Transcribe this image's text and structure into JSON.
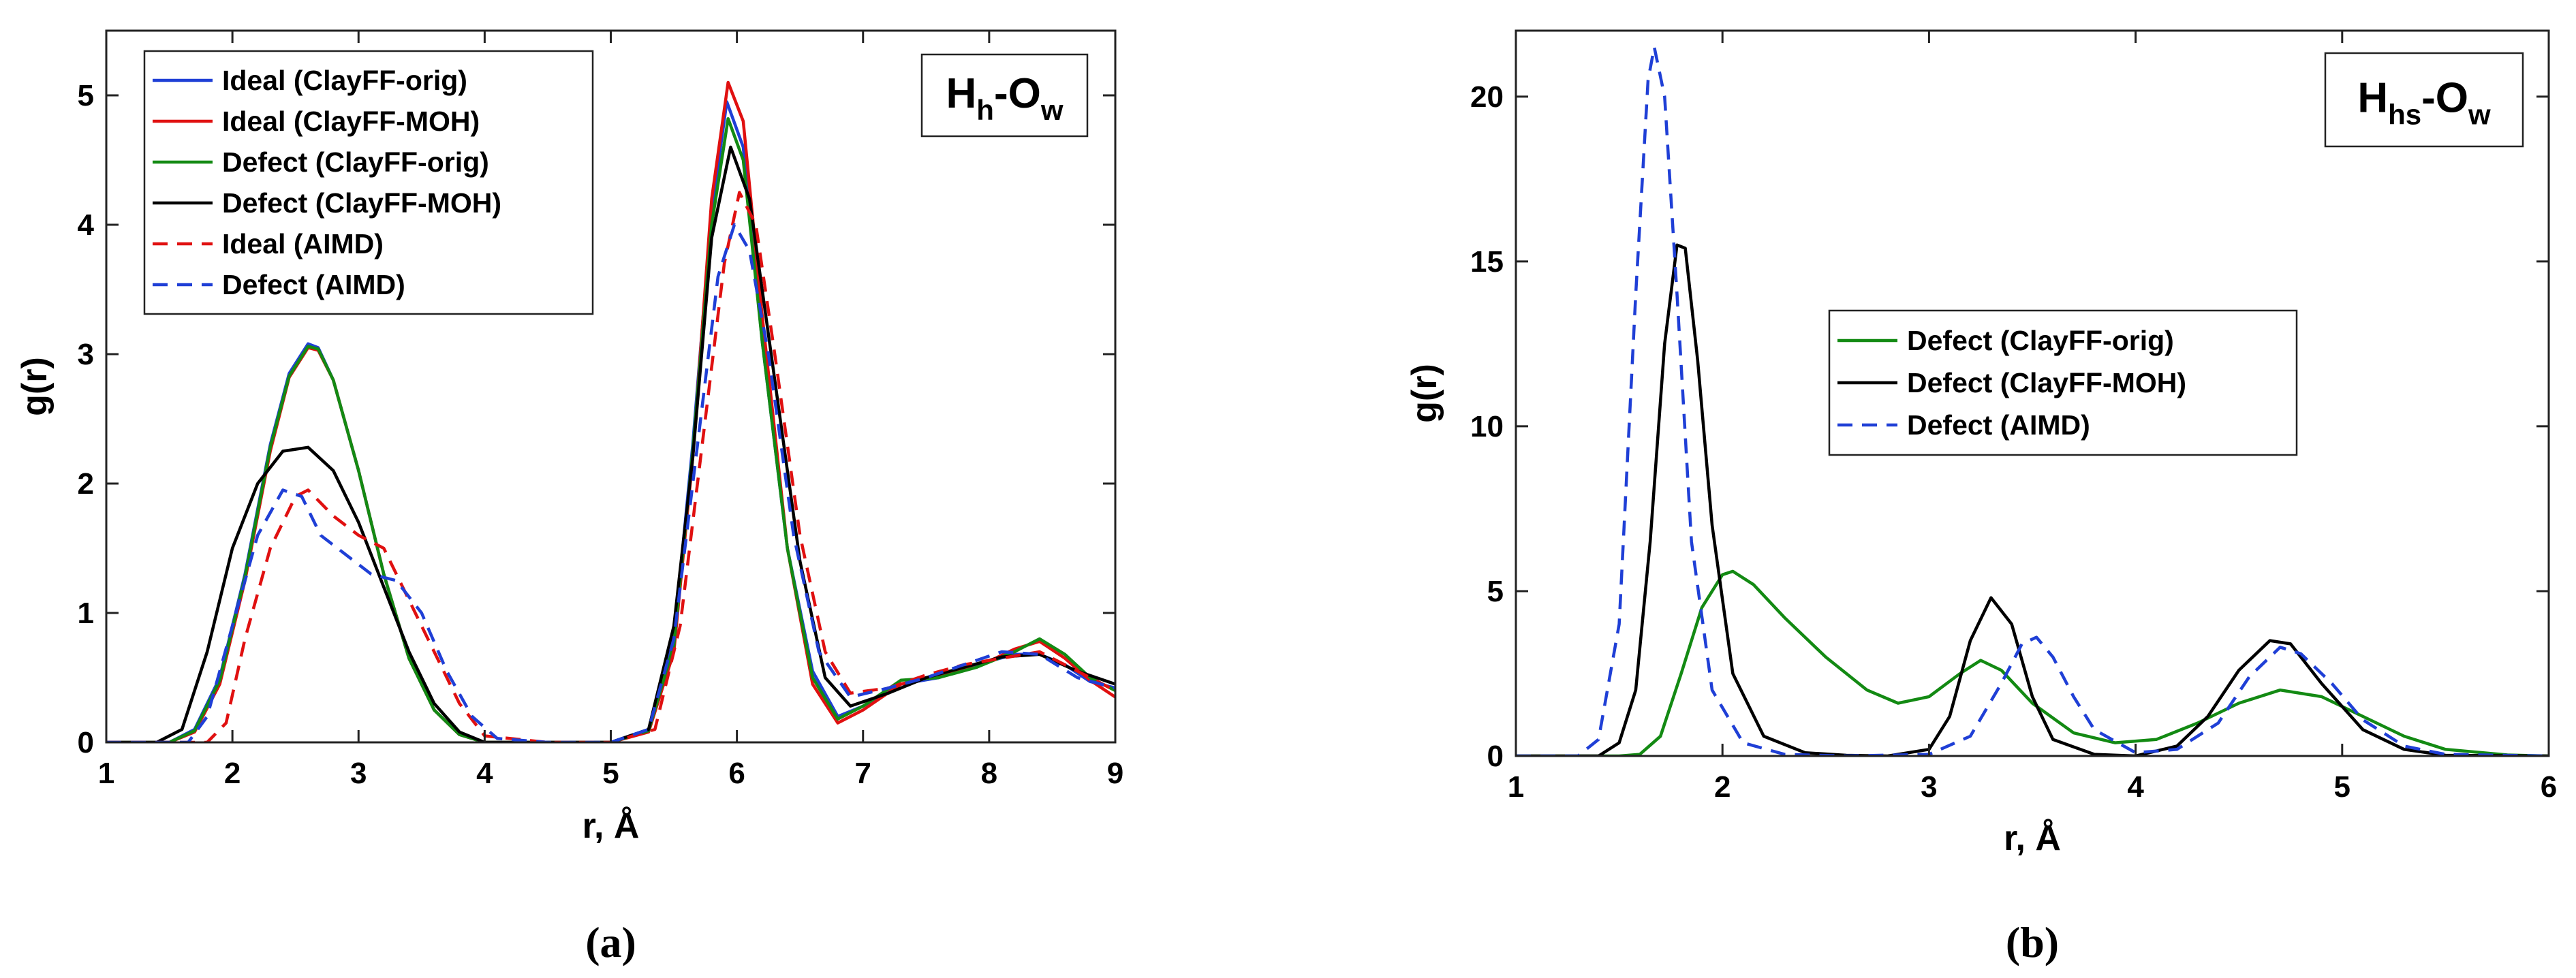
{
  "chart_data": [
    {
      "type": "line",
      "panel_label": "(a)",
      "annotation": {
        "main": "H",
        "sub1": "h",
        "dash": "-O",
        "sub2": "w"
      },
      "xlabel": "r, Å",
      "ylabel": "g(r)",
      "xlim": [
        1,
        9
      ],
      "ylim": [
        0,
        5.5
      ],
      "xticks": [
        1,
        2,
        3,
        4,
        5,
        6,
        7,
        8,
        9
      ],
      "yticks": [
        0,
        1,
        2,
        3,
        4,
        5
      ],
      "legend_position": "top-left",
      "series": [
        {
          "name": "Ideal (ClayFF-orig)",
          "color": "#1f3fd6",
          "dash": "solid",
          "x": [
            1.0,
            1.5,
            1.7,
            1.9,
            2.1,
            2.3,
            2.45,
            2.6,
            2.68,
            2.8,
            3.0,
            3.2,
            3.4,
            3.6,
            3.8,
            4.0,
            4.5,
            5.0,
            5.3,
            5.5,
            5.65,
            5.8,
            5.92,
            6.05,
            6.2,
            6.4,
            6.6,
            6.8,
            7.0,
            7.3,
            7.6,
            7.9,
            8.2,
            8.4,
            8.6,
            8.8,
            9.0
          ],
          "y": [
            0,
            0,
            0.1,
            0.5,
            1.3,
            2.3,
            2.85,
            3.08,
            3.05,
            2.8,
            2.1,
            1.3,
            0.65,
            0.25,
            0.06,
            0,
            0,
            0,
            0.1,
            0.8,
            2.3,
            4.1,
            4.95,
            4.6,
            3.1,
            1.5,
            0.55,
            0.2,
            0.28,
            0.45,
            0.5,
            0.6,
            0.68,
            0.68,
            0.6,
            0.47,
            0.42
          ]
        },
        {
          "name": "Ideal (ClayFF-MOH)",
          "color": "#e01010",
          "dash": "solid",
          "x": [
            1.0,
            1.5,
            1.7,
            1.9,
            2.1,
            2.3,
            2.45,
            2.6,
            2.68,
            2.8,
            3.0,
            3.2,
            3.4,
            3.6,
            3.8,
            4.0,
            4.5,
            5.0,
            5.3,
            5.5,
            5.65,
            5.8,
            5.93,
            6.05,
            6.2,
            6.4,
            6.6,
            6.8,
            7.0,
            7.3,
            7.6,
            7.9,
            8.2,
            8.4,
            8.6,
            8.8,
            9.0
          ],
          "y": [
            0,
            0,
            0.08,
            0.45,
            1.25,
            2.25,
            2.82,
            3.05,
            3.03,
            2.8,
            2.1,
            1.3,
            0.65,
            0.25,
            0.06,
            0,
            0,
            0,
            0.08,
            0.7,
            2.2,
            4.2,
            5.1,
            4.8,
            3.3,
            1.5,
            0.45,
            0.15,
            0.25,
            0.45,
            0.52,
            0.58,
            0.72,
            0.78,
            0.65,
            0.48,
            0.35
          ]
        },
        {
          "name": "Defect (ClayFF-orig)",
          "color": "#138a13",
          "dash": "solid",
          "x": [
            1.0,
            1.5,
            1.7,
            1.9,
            2.1,
            2.3,
            2.45,
            2.6,
            2.68,
            2.8,
            3.0,
            3.2,
            3.4,
            3.6,
            3.8,
            4.0,
            4.5,
            5.0,
            5.3,
            5.5,
            5.65,
            5.8,
            5.93,
            6.05,
            6.2,
            6.4,
            6.6,
            6.8,
            7.0,
            7.3,
            7.6,
            7.9,
            8.2,
            8.4,
            8.6,
            8.8,
            9.0
          ],
          "y": [
            0,
            0,
            0.09,
            0.48,
            1.28,
            2.28,
            2.83,
            3.06,
            3.04,
            2.8,
            2.1,
            1.3,
            0.65,
            0.25,
            0.06,
            0,
            0,
            0,
            0.09,
            0.75,
            2.25,
            4.0,
            4.82,
            4.5,
            3.1,
            1.5,
            0.5,
            0.18,
            0.28,
            0.48,
            0.5,
            0.58,
            0.7,
            0.8,
            0.68,
            0.5,
            0.4
          ]
        },
        {
          "name": "Defect (ClayFF-MOH)",
          "color": "#000000",
          "dash": "solid",
          "x": [
            1.0,
            1.4,
            1.6,
            1.8,
            2.0,
            2.2,
            2.4,
            2.6,
            2.8,
            3.0,
            3.2,
            3.4,
            3.6,
            3.8,
            4.0,
            4.5,
            5.0,
            5.3,
            5.5,
            5.65,
            5.8,
            5.95,
            6.1,
            6.3,
            6.5,
            6.7,
            6.9,
            7.2,
            7.5,
            7.8,
            8.1,
            8.4,
            8.7,
            9.0
          ],
          "y": [
            0,
            0,
            0.1,
            0.7,
            1.5,
            2.0,
            2.25,
            2.28,
            2.1,
            1.7,
            1.2,
            0.7,
            0.3,
            0.08,
            0,
            0,
            0,
            0.1,
            0.9,
            2.2,
            3.9,
            4.6,
            4.2,
            2.8,
            1.4,
            0.5,
            0.28,
            0.38,
            0.5,
            0.58,
            0.66,
            0.68,
            0.55,
            0.45
          ]
        },
        {
          "name": "Ideal (AIMD)",
          "color": "#e01010",
          "dash": "dashed",
          "x": [
            1.0,
            1.8,
            1.95,
            2.1,
            2.3,
            2.5,
            2.6,
            2.8,
            3.0,
            3.2,
            3.4,
            3.6,
            3.8,
            4.0,
            4.5,
            5.0,
            5.35,
            5.55,
            5.75,
            5.9,
            6.02,
            6.15,
            6.3,
            6.5,
            6.7,
            6.9,
            7.2,
            7.5,
            7.8,
            8.1,
            8.4,
            8.7,
            9.0
          ],
          "y": [
            0,
            0,
            0.15,
            0.8,
            1.5,
            1.9,
            1.95,
            1.75,
            1.6,
            1.5,
            1.1,
            0.7,
            0.3,
            0.05,
            0,
            0,
            0.1,
            0.9,
            2.5,
            3.7,
            4.25,
            4.0,
            3.0,
            1.6,
            0.7,
            0.38,
            0.42,
            0.52,
            0.6,
            0.65,
            0.7,
            0.55,
            0.4
          ]
        },
        {
          "name": "Defect (AIMD)",
          "color": "#1f3fd6",
          "dash": "dashed",
          "x": [
            1.0,
            1.65,
            1.8,
            2.0,
            2.2,
            2.4,
            2.55,
            2.7,
            2.9,
            3.1,
            3.3,
            3.5,
            3.7,
            3.9,
            4.1,
            4.5,
            5.0,
            5.3,
            5.5,
            5.7,
            5.85,
            5.98,
            6.1,
            6.25,
            6.45,
            6.65,
            6.9,
            7.2,
            7.5,
            7.8,
            8.1,
            8.4,
            8.7,
            9.0
          ],
          "y": [
            0,
            0,
            0.2,
            0.9,
            1.6,
            1.95,
            1.9,
            1.6,
            1.45,
            1.3,
            1.25,
            1.0,
            0.55,
            0.2,
            0.03,
            0,
            0,
            0.1,
            0.8,
            2.4,
            3.6,
            4.0,
            3.8,
            3.0,
            1.6,
            0.7,
            0.35,
            0.42,
            0.5,
            0.6,
            0.7,
            0.68,
            0.5,
            0.42
          ]
        }
      ]
    },
    {
      "type": "line",
      "panel_label": "(b)",
      "annotation": {
        "main": "H",
        "sub1": "hs",
        "dash": "-O",
        "sub2": "w"
      },
      "xlabel": "r, Å",
      "ylabel": "g(r)",
      "xlim": [
        1,
        6
      ],
      "ylim": [
        0,
        22
      ],
      "xticks": [
        1,
        2,
        3,
        4,
        5,
        6
      ],
      "yticks": [
        0,
        5,
        10,
        15,
        20
      ],
      "legend_position": "center",
      "series": [
        {
          "name": "Defect (ClayFF-orig)",
          "color": "#138a13",
          "dash": "solid",
          "x": [
            1.0,
            1.5,
            1.6,
            1.7,
            1.8,
            1.9,
            2.0,
            2.05,
            2.15,
            2.3,
            2.5,
            2.7,
            2.85,
            3.0,
            3.15,
            3.25,
            3.35,
            3.5,
            3.7,
            3.9,
            4.1,
            4.3,
            4.5,
            4.7,
            4.9,
            5.1,
            5.3,
            5.5,
            5.8,
            6.0
          ],
          "y": [
            0,
            0,
            0.05,
            0.6,
            2.5,
            4.5,
            5.5,
            5.6,
            5.2,
            4.2,
            3.0,
            2.0,
            1.6,
            1.8,
            2.5,
            2.9,
            2.6,
            1.6,
            0.7,
            0.4,
            0.5,
            1.0,
            1.6,
            2.0,
            1.8,
            1.2,
            0.6,
            0.2,
            0.03,
            0
          ]
        },
        {
          "name": "Defect (ClayFF-MOH)",
          "color": "#000000",
          "dash": "solid",
          "x": [
            1.0,
            1.4,
            1.5,
            1.58,
            1.65,
            1.72,
            1.78,
            1.82,
            1.88,
            1.95,
            2.05,
            2.2,
            2.4,
            2.6,
            2.8,
            3.0,
            3.1,
            3.2,
            3.3,
            3.4,
            3.5,
            3.6,
            3.8,
            4.0,
            4.2,
            4.35,
            4.5,
            4.65,
            4.75,
            4.9,
            5.1,
            5.3,
            5.5,
            6.0
          ],
          "y": [
            0,
            0,
            0.4,
            2.0,
            6.5,
            12.5,
            15.5,
            15.4,
            12.0,
            7.0,
            2.5,
            0.6,
            0.1,
            0.02,
            0,
            0.2,
            1.2,
            3.5,
            4.8,
            4.0,
            1.8,
            0.5,
            0.05,
            0,
            0.3,
            1.2,
            2.6,
            3.5,
            3.4,
            2.2,
            0.8,
            0.2,
            0.02,
            0
          ]
        },
        {
          "name": "Defect (AIMD)",
          "color": "#1f3fd6",
          "dash": "dashed",
          "x": [
            1.0,
            1.3,
            1.4,
            1.5,
            1.58,
            1.64,
            1.67,
            1.72,
            1.78,
            1.85,
            1.95,
            2.1,
            2.3,
            2.6,
            3.0,
            3.2,
            3.35,
            3.45,
            3.52,
            3.6,
            3.7,
            3.8,
            4.0,
            4.2,
            4.4,
            4.55,
            4.7,
            4.8,
            4.95,
            5.1,
            5.3,
            5.5,
            6.0
          ],
          "y": [
            0,
            0,
            0.5,
            4.0,
            14.0,
            20.5,
            21.5,
            20.0,
            14.0,
            6.5,
            2.0,
            0.4,
            0.05,
            0,
            0.05,
            0.6,
            2.2,
            3.4,
            3.6,
            3.0,
            1.8,
            0.8,
            0.1,
            0.2,
            1.0,
            2.4,
            3.3,
            3.1,
            2.2,
            1.1,
            0.3,
            0.05,
            0
          ]
        }
      ]
    }
  ]
}
